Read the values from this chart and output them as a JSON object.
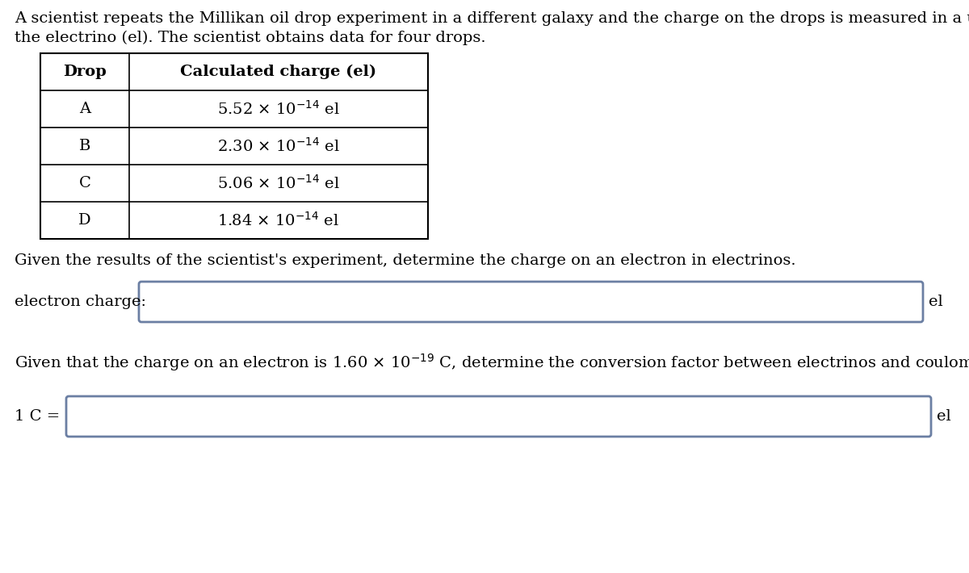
{
  "intro_text_line1": "A scientist repeats the Millikan oil drop experiment in a different galaxy and the charge on the drops is measured in a unit called",
  "intro_text_line2": "the electrino (el). The scientist obtains data for four drops.",
  "table_col1_header": "Drop",
  "table_col2_header": "Calculated charge (el)",
  "table_drops": [
    "A",
    "B",
    "C",
    "D"
  ],
  "table_charges": [
    "5.52 × 10$^{-14}$ el",
    "2.30 × 10$^{-14}$ el",
    "5.06 × 10$^{-14}$ el",
    "1.84 × 10$^{-14}$ el"
  ],
  "question1": "Given the results of the scientist's experiment, determine the charge on an electron in electrinos.",
  "label_electron": "electron charge:",
  "label_el1": "el",
  "question2": "Given that the charge on an electron is 1.60 × 10$^{-19}$ C, determine the conversion factor between electrinos and coulombs.",
  "label_1C": "1 C =",
  "label_el2": "el",
  "bg_color": "#ffffff",
  "text_color": "#000000",
  "box_edge_color": "#6b7fa3",
  "table_edge_color": "#000000",
  "font_size": 14,
  "font_family": "serif"
}
